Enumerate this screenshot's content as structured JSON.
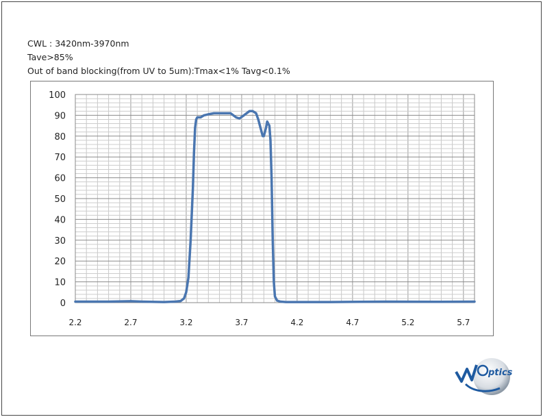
{
  "notes": {
    "line1": "CWL : 3420nm-3970nm",
    "line2": "Tave>85%",
    "line3": "Out of band blocking(from UV to 5um):Tmax<1% Tavg<0.1%"
  },
  "logo": {
    "text": "ptics",
    "accent": "#1e5aa0"
  },
  "chart_data": {
    "type": "line",
    "title": "",
    "xlabel": "",
    "ylabel": "",
    "xlim": [
      2.2,
      5.8
    ],
    "ylim": [
      0,
      100
    ],
    "x_ticks": [
      "2.2",
      "2.7",
      "3.2",
      "3.7",
      "4.2",
      "4.7",
      "5.2",
      "5.7"
    ],
    "y_ticks": [
      "0",
      "10",
      "20",
      "30",
      "40",
      "50",
      "60",
      "70",
      "80",
      "90",
      "100"
    ],
    "grid": true,
    "legend": "none",
    "line_color": "#4a76b0",
    "series": [
      {
        "x": [
          2.2,
          2.5,
          2.7,
          2.8,
          3.0,
          3.1,
          3.15,
          3.18,
          3.2,
          3.22,
          3.24,
          3.26,
          3.27,
          3.28,
          3.29,
          3.3,
          3.31,
          3.33,
          3.36,
          3.4,
          3.45,
          3.5,
          3.55,
          3.6,
          3.65,
          3.68,
          3.72,
          3.77,
          3.8,
          3.83,
          3.85,
          3.87,
          3.89,
          3.9,
          3.92,
          3.93,
          3.94,
          3.95,
          3.96,
          3.97,
          3.98,
          3.99,
          4.0,
          4.02,
          4.05,
          4.1,
          4.2,
          4.5,
          5.0,
          5.5,
          5.8
        ],
        "y": [
          0.5,
          0.5,
          0.7,
          0.5,
          0.3,
          0.5,
          0.8,
          2,
          5,
          12,
          30,
          55,
          72,
          84,
          88,
          89,
          89,
          89,
          90,
          90.5,
          91,
          91,
          91,
          91,
          89,
          88.5,
          90,
          92,
          92,
          91,
          88,
          84,
          80,
          80,
          84,
          87,
          86,
          85,
          78,
          60,
          30,
          10,
          3,
          1,
          0.5,
          0.3,
          0.3,
          0.3,
          0.5,
          0.4,
          0.5
        ]
      }
    ]
  }
}
